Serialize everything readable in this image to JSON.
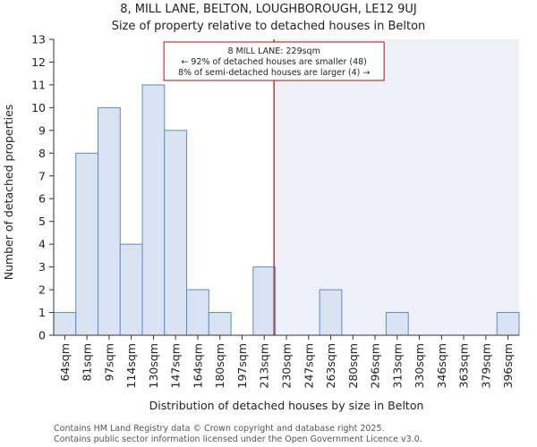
{
  "chart_data": {
    "type": "bar",
    "title": "8, MILL LANE, BELTON, LOUGHBOROUGH, LE12 9UJ",
    "subtitle": "Size of property relative to detached houses in Belton",
    "xlabel": "Distribution of detached houses by size in Belton",
    "ylabel": "Number of detached properties",
    "categories": [
      "64sqm",
      "81sqm",
      "97sqm",
      "114sqm",
      "130sqm",
      "147sqm",
      "164sqm",
      "180sqm",
      "197sqm",
      "213sqm",
      "230sqm",
      "247sqm",
      "263sqm",
      "280sqm",
      "296sqm",
      "313sqm",
      "330sqm",
      "346sqm",
      "363sqm",
      "379sqm",
      "396sqm"
    ],
    "values": [
      1,
      8,
      10,
      4,
      11,
      9,
      2,
      1,
      0,
      3,
      0,
      0,
      2,
      0,
      0,
      1,
      0,
      0,
      0,
      0,
      1
    ],
    "ylim": [
      0,
      13
    ],
    "yticks": [
      "0",
      "1",
      "2",
      "3",
      "4",
      "5",
      "6",
      "7",
      "8",
      "9",
      "10",
      "11",
      "12",
      "13"
    ],
    "grid": false,
    "marker_value_sqm": 229,
    "annotation": {
      "line1": "8 MILL LANE: 229sqm",
      "line2": "← 92% of detached houses are smaller (48)",
      "line3": "8% of semi-detached houses are larger (4) →"
    },
    "colors": {
      "bar_fill": "#dae3f2",
      "bar_stroke": "#5b8cc8",
      "marker": "#aa1111",
      "shade": "#eef1fa",
      "axis": "#333333"
    }
  },
  "footer": {
    "line1": "Contains HM Land Registry data © Crown copyright and database right 2025.",
    "line2": "Contains public sector information licensed under the Open Government Licence v3.0."
  }
}
